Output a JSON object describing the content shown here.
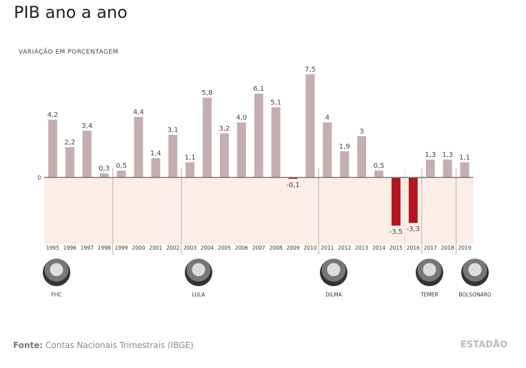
{
  "chart_data": {
    "type": "bar",
    "title": "PIB ano a ano",
    "ylabel": "VARIAÇÃO EM PORCENTAGEM",
    "zero_label": "0",
    "categories": [
      "1995",
      "1996",
      "1997",
      "1998",
      "1999",
      "2000",
      "2001",
      "2002",
      "2003",
      "2004",
      "2005",
      "2006",
      "2007",
      "2008",
      "2009",
      "2010",
      "2011",
      "2012",
      "2013",
      "2014",
      "2015",
      "2016",
      "2017",
      "2018",
      "2019"
    ],
    "values": [
      4.2,
      2.2,
      3.4,
      0.3,
      0.5,
      4.4,
      1.4,
      3.1,
      1.1,
      5.8,
      3.2,
      4.0,
      6.1,
      5.1,
      -0.1,
      7.5,
      4,
      1.9,
      3,
      0.5,
      -3.5,
      -3.3,
      1.3,
      1.3,
      1.1
    ],
    "value_labels": [
      "4,2",
      "2,2",
      "3,4",
      "0,3",
      "0,5",
      "4,4",
      "1,4",
      "3,1",
      "1,1",
      "5,8",
      "3,2",
      "4,0",
      "6,1",
      "5,1",
      "-0,1",
      "7,5",
      "4",
      "1,9",
      "3",
      "0,5",
      "-3,5",
      "-3,3",
      "1,3",
      "1,3",
      "1,1"
    ],
    "ylim": [
      -4.8,
      7.5
    ],
    "colors": {
      "positive": "#c4aeb0",
      "negative": "#b5161e",
      "negative_band": "#fdeee8"
    }
  },
  "presidents": [
    {
      "name": "FHC",
      "from": "1995"
    },
    {
      "name": "LULA",
      "from": "2003"
    },
    {
      "name": "DILMA",
      "from": "2011"
    },
    {
      "name": "TEMER",
      "from": "2016"
    },
    {
      "name": "BOLSONARO",
      "from": "2019"
    }
  ],
  "footer": {
    "source_label": "Fonte:",
    "source_text": " Contas Nacionais Trimestrais (IBGE)",
    "logo": "ESTADÃO"
  }
}
